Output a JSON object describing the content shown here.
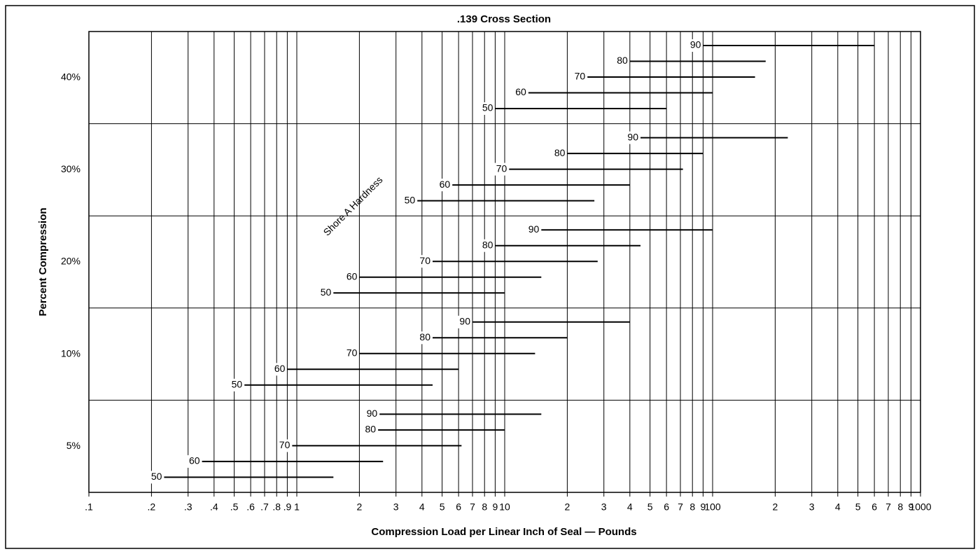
{
  "chart_data": {
    "type": "range",
    "title": ".139 Cross Section",
    "xlabel": "Compression Load per Linear Inch of Seal — Pounds",
    "ylabel": "Percent Compression",
    "annotation": "Shore A Hardness",
    "log_x": true,
    "grid": true,
    "color": "#000000",
    "xlim": [
      0.1,
      1000
    ],
    "xticks": [
      {
        "value": 0.1,
        "label": ".1"
      },
      {
        "value": 0.2,
        "label": ".2"
      },
      {
        "value": 0.3,
        "label": ".3"
      },
      {
        "value": 0.4,
        "label": ".4"
      },
      {
        "value": 0.5,
        "label": ".5"
      },
      {
        "value": 0.6,
        "label": ".6"
      },
      {
        "value": 0.7,
        "label": ".7"
      },
      {
        "value": 0.8,
        "label": ".8"
      },
      {
        "value": 0.9,
        "label": ".9"
      },
      1,
      2,
      3,
      4,
      5,
      6,
      7,
      8,
      9,
      10,
      {
        "value": 20,
        "label": "2"
      },
      {
        "value": 30,
        "label": "3"
      },
      {
        "value": 40,
        "label": "4"
      },
      {
        "value": 50,
        "label": "5"
      },
      {
        "value": 60,
        "label": "6"
      },
      {
        "value": 70,
        "label": "7"
      },
      {
        "value": 80,
        "label": "8"
      },
      {
        "value": 90,
        "label": "9"
      },
      100,
      {
        "value": 200,
        "label": "2"
      },
      {
        "value": 300,
        "label": "3"
      },
      {
        "value": 400,
        "label": "4"
      },
      {
        "value": 500,
        "label": "5"
      },
      {
        "value": 600,
        "label": "6"
      },
      {
        "value": 700,
        "label": "7"
      },
      {
        "value": 800,
        "label": "8"
      },
      {
        "value": 900,
        "label": "9"
      },
      1000
    ],
    "categories": [
      "5%",
      "10%",
      "20%",
      "30%",
      "40%"
    ],
    "groups": [
      {
        "bars": [
          {
            "label": "90",
            "start": 2.5,
            "end": 15
          },
          {
            "label": "80",
            "start": 2.46,
            "end": 10
          },
          {
            "label": "70",
            "start": 0.95,
            "end": 6.2
          },
          {
            "label": "60",
            "start": 0.35,
            "end": 2.6
          },
          {
            "label": "50",
            "start": 0.23,
            "end": 1.5
          }
        ]
      },
      {
        "bars": [
          {
            "label": "90",
            "start": 7,
            "end": 40
          },
          {
            "label": "80",
            "start": 4.5,
            "end": 20
          },
          {
            "label": "70",
            "start": 2,
            "end": 14
          },
          {
            "label": "60",
            "start": 0.9,
            "end": 6
          },
          {
            "label": "50",
            "start": 0.56,
            "end": 4.5
          }
        ]
      },
      {
        "bars": [
          {
            "label": "90",
            "start": 15,
            "end": 100
          },
          {
            "label": "80",
            "start": 9,
            "end": 45
          },
          {
            "label": "70",
            "start": 4.5,
            "end": 28
          },
          {
            "label": "60",
            "start": 2,
            "end": 15
          },
          {
            "label": "50",
            "start": 1.5,
            "end": 10
          }
        ]
      },
      {
        "bars": [
          {
            "label": "90",
            "start": 45,
            "end": 230
          },
          {
            "label": "80",
            "start": 20,
            "end": 90
          },
          {
            "label": "70",
            "start": 10.5,
            "end": 72
          },
          {
            "label": "60",
            "start": 5.6,
            "end": 40
          },
          {
            "label": "50",
            "start": 3.8,
            "end": 27
          }
        ]
      },
      {
        "bars": [
          {
            "label": "90",
            "start": 90,
            "end": 600
          },
          {
            "label": "80",
            "start": 40,
            "end": 180
          },
          {
            "label": "70",
            "start": 25,
            "end": 160
          },
          {
            "label": "60",
            "start": 13,
            "end": 100
          },
          {
            "label": "50",
            "start": 9,
            "end": 60
          }
        ]
      }
    ]
  }
}
